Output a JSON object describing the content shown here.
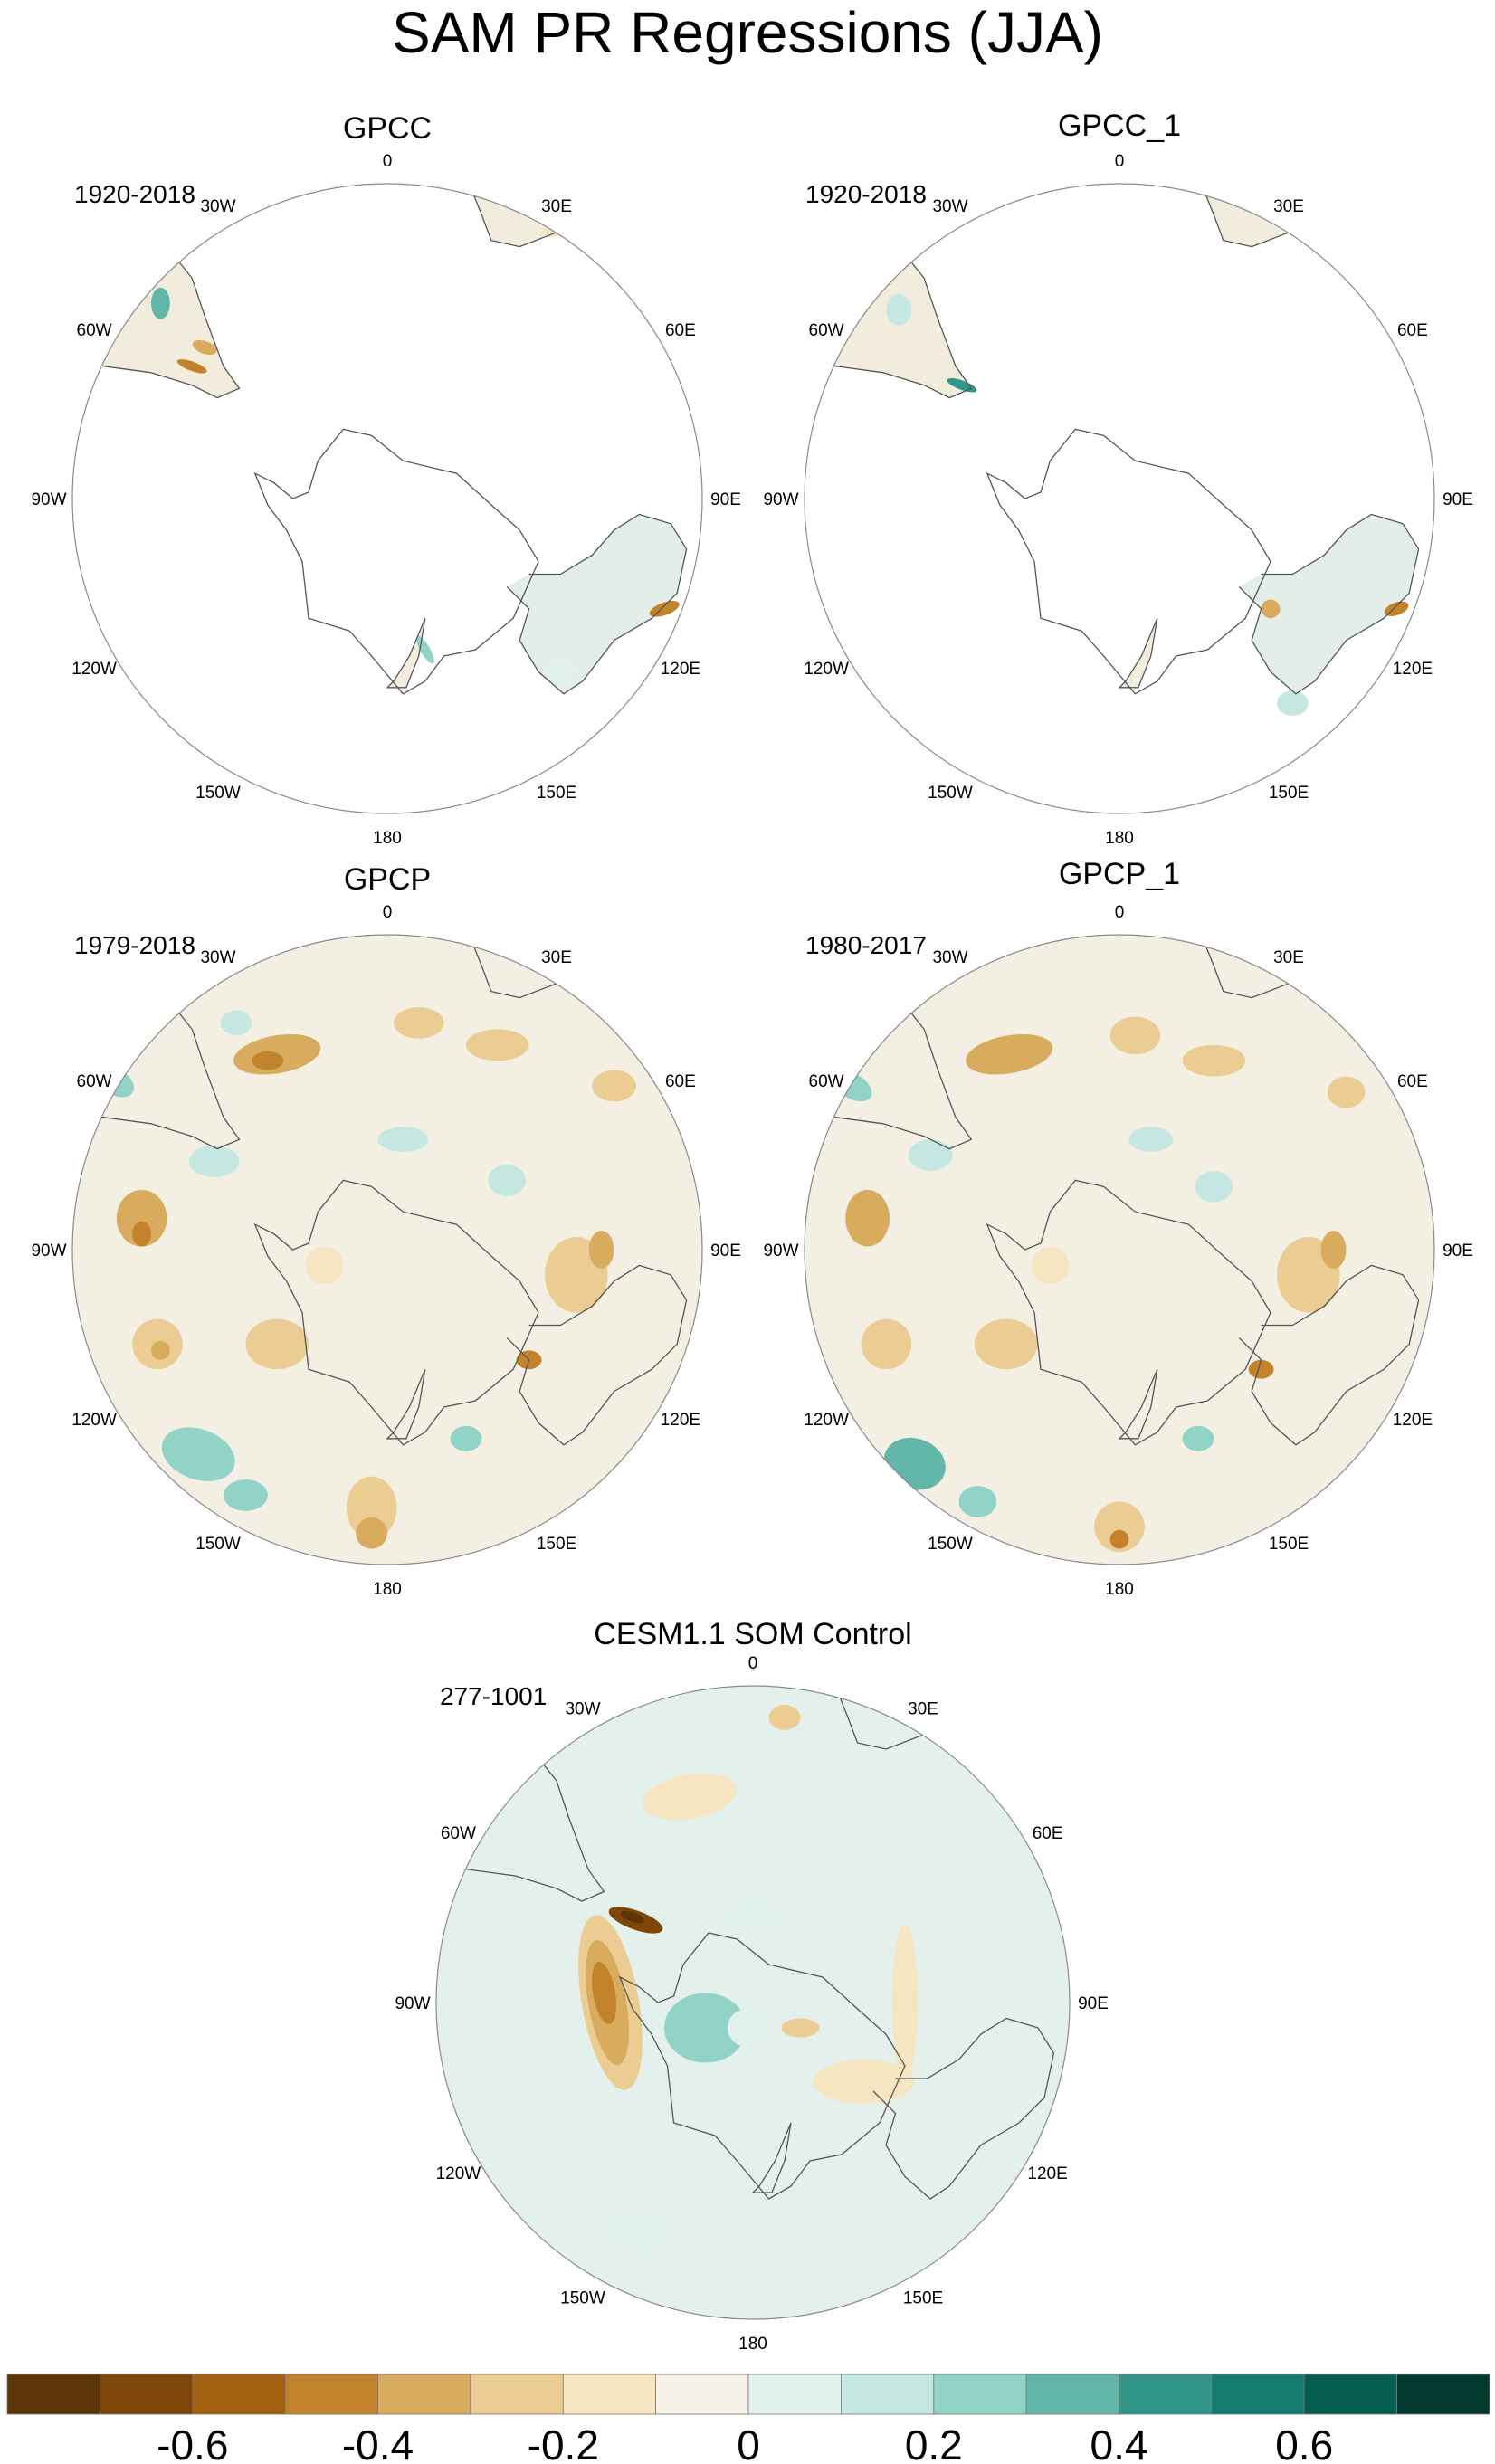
{
  "figure": {
    "title": "SAM PR Regressions (JJA)"
  },
  "longitude_labels": [
    {
      "text": "0",
      "lon": 0
    },
    {
      "text": "30E",
      "lon": 30
    },
    {
      "text": "60E",
      "lon": 60
    },
    {
      "text": "90E",
      "lon": 90
    },
    {
      "text": "120E",
      "lon": 120
    },
    {
      "text": "150E",
      "lon": 150
    },
    {
      "text": "180",
      "lon": 180
    },
    {
      "text": "150W",
      "lon": -150
    },
    {
      "text": "120W",
      "lon": -120
    },
    {
      "text": "90W",
      "lon": -90
    },
    {
      "text": "60W",
      "lon": -60
    },
    {
      "text": "30W",
      "lon": -30
    }
  ],
  "panels": [
    {
      "id": "gpcc",
      "title": "GPCC",
      "period": "1920-2018",
      "coverage": "land"
    },
    {
      "id": "gpcc-1",
      "title": "GPCC_1",
      "period": "1920-2018",
      "coverage": "land"
    },
    {
      "id": "gpcp",
      "title": "GPCP",
      "period": "1979-2018",
      "coverage": "global"
    },
    {
      "id": "gpcp-1",
      "title": "GPCP_1",
      "period": "1980-2017",
      "coverage": "global"
    },
    {
      "id": "cesm",
      "title": "CESM1.1 SOM Control",
      "period": "277-1001",
      "coverage": "global"
    }
  ],
  "colorbar": {
    "colors": [
      "#5c3608",
      "#7e4709",
      "#a3600f",
      "#c3822c",
      "#d9ab5f",
      "#ebcd94",
      "#f5e6c1",
      "#f5f1e6",
      "#e2f1ee",
      "#c4e8e1",
      "#91d3c7",
      "#62b7a9",
      "#329689",
      "#147d6e",
      "#055e50",
      "#033a30"
    ],
    "boundaries": [
      -0.8,
      -0.7,
      -0.6,
      -0.5,
      -0.4,
      -0.3,
      -0.2,
      -0.1,
      0,
      0.1,
      0.2,
      0.3,
      0.4,
      0.5,
      0.6,
      0.7,
      0.8
    ],
    "labels": [
      {
        "text": "-0.6",
        "value": -0.6
      },
      {
        "text": "-0.4",
        "value": -0.4
      },
      {
        "text": "-0.2",
        "value": -0.2
      },
      {
        "text": "0",
        "value": 0
      },
      {
        "text": "0.2",
        "value": 0.2
      },
      {
        "text": "0.4",
        "value": 0.4
      },
      {
        "text": "0.6",
        "value": 0.6
      }
    ]
  }
}
